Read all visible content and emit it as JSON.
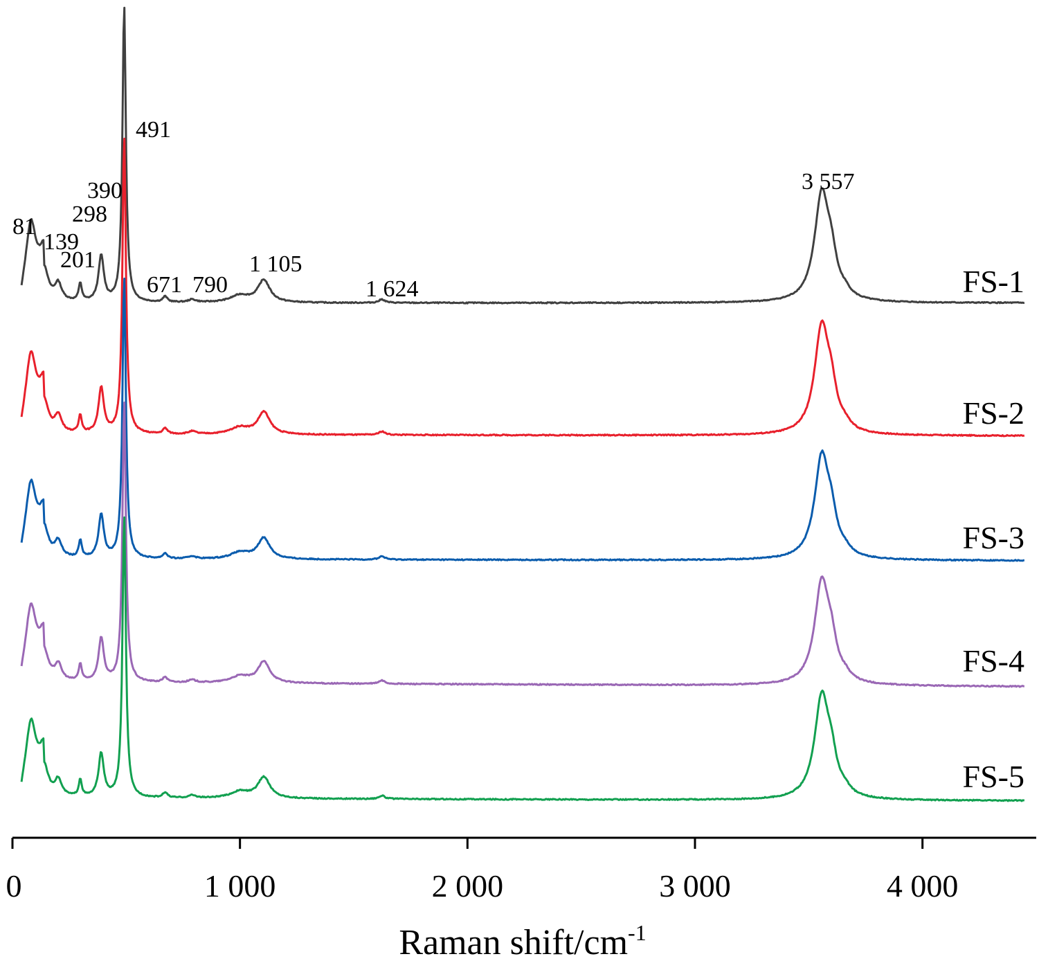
{
  "chart_data": {
    "type": "line",
    "title": "",
    "xlabel": "Raman shift/cm",
    "xlabel_superscript": "-1",
    "ylabel": "",
    "xlim": [
      0,
      4500
    ],
    "x_ticks": [
      0,
      1000,
      2000,
      3000,
      4000
    ],
    "x_tick_labels": [
      "0",
      "1 000",
      "2 000",
      "3 000",
      "4 000"
    ],
    "grid": false,
    "legend": "inline-right",
    "peaks": [
      81,
      139,
      201,
      298,
      390,
      491,
      671,
      790,
      1105,
      1624,
      3557
    ],
    "peak_labels": [
      "81",
      "139",
      "201",
      "298",
      "390",
      "491",
      "671",
      "790",
      "1 105",
      "1 624",
      "3 557"
    ],
    "series": [
      {
        "name": "FS-1",
        "color": "#404040",
        "baseline": 0.0,
        "scale": 1.0,
        "slope": 0.0
      },
      {
        "name": "FS-2",
        "color": "#e8202c",
        "baseline": 0.0,
        "scale": 1.0,
        "slope": 0.1
      },
      {
        "name": "FS-3",
        "color": "#0a5cad",
        "baseline": 0.0,
        "scale": 0.95,
        "slope": 0.1
      },
      {
        "name": "FS-4",
        "color": "#9a68b5",
        "baseline": 0.0,
        "scale": 0.95,
        "slope": 0.3
      },
      {
        "name": "FS-5",
        "color": "#12a050",
        "baseline": 0.0,
        "scale": 0.95,
        "slope": 0.2
      }
    ]
  }
}
